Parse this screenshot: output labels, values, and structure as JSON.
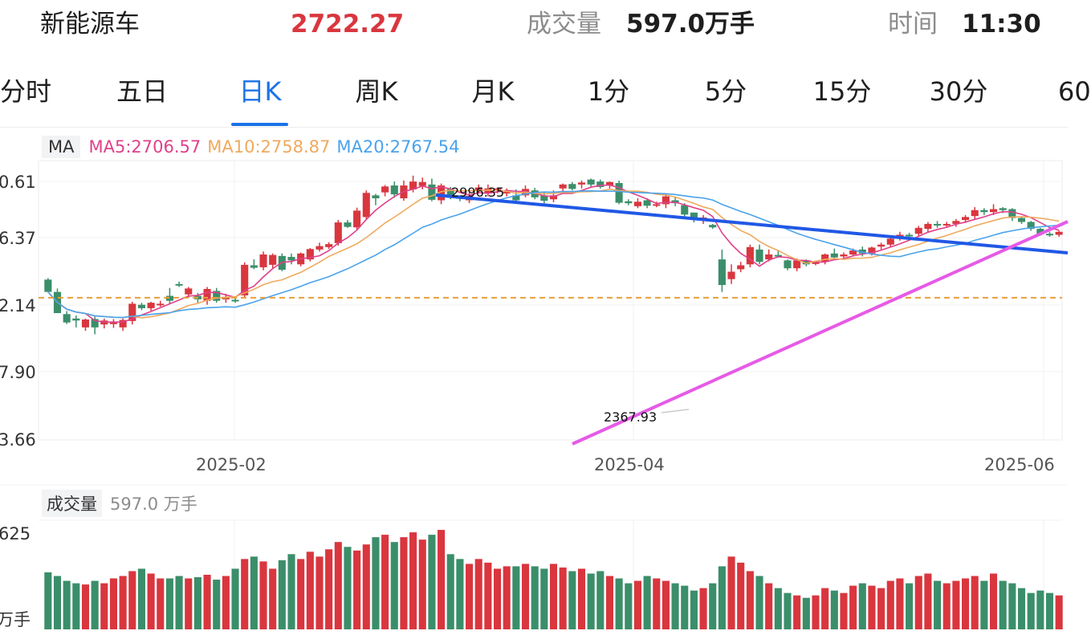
{
  "header": {
    "name": "新能源车",
    "price": "2722.27",
    "volume_label": "成交量",
    "volume_value": "597.0万手",
    "time_label": "时间",
    "time_value": "11:30"
  },
  "tabs": [
    {
      "label": "分时",
      "active": false
    },
    {
      "label": "五日",
      "active": false
    },
    {
      "label": "日K",
      "active": true
    },
    {
      "label": "周K",
      "active": false
    },
    {
      "label": "月K",
      "active": false
    },
    {
      "label": "1分",
      "active": false
    },
    {
      "label": "5分",
      "active": false
    },
    {
      "label": "15分",
      "active": false
    },
    {
      "label": "30分",
      "active": false
    },
    {
      "label": "60",
      "active": false
    }
  ],
  "ma_legend": {
    "tag": "MA",
    "ma5": "MA5:2706.57",
    "ma10": "MA10:2758.87",
    "ma20": "MA20:2767.54"
  },
  "volume_legend": {
    "tag": "成交量",
    "value": "597.0 万手"
  },
  "colors": {
    "up": "#d9363e",
    "down": "#3b8e6a",
    "price": "#d9363e",
    "ma5": "#e0408a",
    "ma10": "#efaa5e",
    "ma20": "#4aa3ec",
    "trendline_blue": "#2058e6",
    "trendline_pink": "#e65ae6",
    "ref_line": "#e8a03a"
  },
  "chart_data": {
    "type": "candlestick",
    "price_axis_labels": [
      "0.61",
      "6.37",
      "2.14",
      "7.90",
      "3.66"
    ],
    "volume_axis_labels": [
      "625",
      "万手"
    ],
    "x_ticks": [
      "2025-02",
      "2025-04",
      "2025-06"
    ],
    "high_annotation": "2996.35",
    "low_annotation": "2367.93",
    "reference_level": 2722.27,
    "ylim": [
      2433.66,
      3000.61
    ],
    "candles": [
      [
        2759,
        2734,
        2738,
        2762,
        47
      ],
      [
        2734,
        2691,
        2694,
        2741,
        44
      ],
      [
        2689,
        2672,
        2669,
        2695,
        40
      ],
      [
        2680,
        2676,
        2662,
        2686,
        38
      ],
      [
        2662,
        2678,
        2655,
        2680,
        37
      ],
      [
        2679,
        2662,
        2648,
        2684,
        40
      ],
      [
        2668,
        2676,
        2660,
        2680,
        38
      ],
      [
        2671,
        2672,
        2661,
        2679,
        42
      ],
      [
        2662,
        2677,
        2655,
        2680,
        44
      ],
      [
        2675,
        2710,
        2668,
        2714,
        48
      ],
      [
        2708,
        2701,
        2697,
        2712,
        50
      ],
      [
        2701,
        2712,
        2696,
        2714,
        46
      ],
      [
        2707,
        2710,
        2704,
        2716,
        42
      ],
      [
        2726,
        2716,
        2710,
        2742,
        42
      ],
      [
        2750,
        2749,
        2744,
        2755,
        44
      ],
      [
        2729,
        2741,
        2722,
        2744,
        42
      ],
      [
        2726,
        2719,
        2712,
        2732,
        43
      ],
      [
        2716,
        2740,
        2708,
        2744,
        45
      ],
      [
        2736,
        2716,
        2712,
        2742,
        41
      ],
      [
        2719,
        2724,
        2712,
        2730,
        44
      ],
      [
        2718,
        2716,
        2712,
        2722,
        50
      ],
      [
        2727,
        2789,
        2722,
        2794,
        58
      ],
      [
        2788,
        2783,
        2780,
        2800,
        60
      ],
      [
        2784,
        2810,
        2778,
        2816,
        56
      ],
      [
        2789,
        2809,
        2782,
        2812,
        50
      ],
      [
        2807,
        2779,
        2776,
        2812,
        57
      ],
      [
        2805,
        2798,
        2790,
        2812,
        62
      ],
      [
        2790,
        2812,
        2786,
        2814,
        58
      ],
      [
        2800,
        2821,
        2796,
        2823,
        64
      ],
      [
        2820,
        2827,
        2816,
        2834,
        60
      ],
      [
        2825,
        2831,
        2821,
        2835,
        66
      ],
      [
        2833,
        2875,
        2828,
        2880,
        72
      ],
      [
        2875,
        2866,
        2864,
        2880,
        68
      ],
      [
        2865,
        2899,
        2860,
        2905,
        65
      ],
      [
        2886,
        2935,
        2880,
        2940,
        70
      ],
      [
        2930,
        2924,
        2910,
        2933,
        76
      ],
      [
        2936,
        2948,
        2928,
        2951,
        78
      ],
      [
        2950,
        2932,
        2925,
        2958,
        72
      ],
      [
        2924,
        2950,
        2919,
        2960,
        76
      ],
      [
        2942,
        2958,
        2936,
        2970,
        80
      ],
      [
        2949,
        2957,
        2942,
        2966,
        74
      ],
      [
        2952,
        2921,
        2918,
        2964,
        78
      ],
      [
        2920,
        2950,
        2912,
        2954,
        82
      ],
      [
        2943,
        2929,
        2922,
        2947,
        62
      ],
      [
        2930,
        2923,
        2918,
        2930,
        58
      ],
      [
        2920,
        2929,
        2914,
        2936,
        54
      ],
      [
        2940,
        2946,
        2934,
        2952,
        58
      ],
      [
        2934,
        2944,
        2928,
        2952,
        55
      ],
      [
        2940,
        2944,
        2934,
        2946,
        50
      ],
      [
        2935,
        2937,
        2928,
        2944,
        52
      ],
      [
        2930,
        2920,
        2914,
        2942,
        52
      ],
      [
        2930,
        2943,
        2926,
        2950,
        54
      ],
      [
        2940,
        2926,
        2922,
        2945,
        52
      ],
      [
        2930,
        2919,
        2912,
        2937,
        50
      ],
      [
        2922,
        2930,
        2916,
        2940,
        54
      ],
      [
        2944,
        2952,
        2938,
        2954,
        51
      ],
      [
        2953,
        2943,
        2940,
        2957,
        48
      ],
      [
        2952,
        2956,
        2944,
        2960,
        50
      ],
      [
        2962,
        2952,
        2946,
        2964,
        46
      ],
      [
        2958,
        2947,
        2944,
        2962,
        48
      ],
      [
        2950,
        2957,
        2944,
        2958,
        44
      ],
      [
        2955,
        2915,
        2912,
        2960,
        42
      ],
      [
        2918,
        2914,
        2910,
        2922,
        38
      ],
      [
        2908,
        2917,
        2904,
        2924,
        40
      ],
      [
        2920,
        2909,
        2904,
        2924,
        44
      ],
      [
        2912,
        2912,
        2906,
        2917,
        42
      ],
      [
        2912,
        2928,
        2904,
        2932,
        40
      ],
      [
        2920,
        2914,
        2908,
        2926,
        38
      ],
      [
        2910,
        2891,
        2886,
        2914,
        36
      ],
      [
        2895,
        2880,
        2875,
        2895,
        32
      ],
      [
        2880,
        2885,
        2872,
        2890,
        34
      ],
      [
        2870,
        2865,
        2862,
        2872,
        38
      ],
      [
        2800,
        2748,
        2734,
        2820,
        52
      ],
      [
        2760,
        2775,
        2750,
        2790,
        60
      ],
      [
        2780,
        2788,
        2774,
        2795,
        55
      ],
      [
        2790,
        2825,
        2784,
        2830,
        48
      ],
      [
        2820,
        2795,
        2790,
        2830,
        44
      ],
      [
        2800,
        2810,
        2796,
        2820,
        38
      ],
      [
        2809,
        2808,
        2804,
        2818,
        34
      ],
      [
        2798,
        2782,
        2778,
        2800,
        30
      ],
      [
        2782,
        2798,
        2776,
        2802,
        28
      ],
      [
        2798,
        2790,
        2786,
        2800,
        26
      ],
      [
        2792,
        2794,
        2788,
        2796,
        28
      ],
      [
        2795,
        2810,
        2790,
        2812,
        34
      ],
      [
        2812,
        2804,
        2800,
        2822,
        32
      ],
      [
        2806,
        2810,
        2800,
        2814,
        30
      ],
      [
        2810,
        2818,
        2806,
        2822,
        36
      ],
      [
        2820,
        2812,
        2806,
        2826,
        38
      ],
      [
        2812,
        2824,
        2808,
        2826,
        36
      ],
      [
        2826,
        2830,
        2820,
        2834,
        34
      ],
      [
        2830,
        2842,
        2824,
        2846,
        40
      ],
      [
        2842,
        2850,
        2838,
        2856,
        42
      ],
      [
        2850,
        2848,
        2842,
        2854,
        38
      ],
      [
        2852,
        2864,
        2846,
        2868,
        44
      ],
      [
        2862,
        2872,
        2856,
        2876,
        46
      ],
      [
        2872,
        2870,
        2864,
        2878,
        40
      ],
      [
        2870,
        2872,
        2864,
        2876,
        38
      ],
      [
        2872,
        2878,
        2866,
        2882,
        40
      ],
      [
        2880,
        2886,
        2874,
        2890,
        42
      ],
      [
        2888,
        2900,
        2880,
        2906,
        44
      ],
      [
        2900,
        2896,
        2890,
        2904,
        40
      ],
      [
        2896,
        2902,
        2890,
        2912,
        46
      ],
      [
        2904,
        2900,
        2894,
        2906,
        40
      ],
      [
        2902,
        2884,
        2878,
        2904,
        38
      ],
      [
        2884,
        2876,
        2872,
        2888,
        34
      ],
      [
        2876,
        2862,
        2858,
        2878,
        30
      ],
      [
        2862,
        2852,
        2848,
        2864,
        32
      ],
      [
        2852,
        2850,
        2846,
        2856,
        30
      ],
      [
        2850,
        2856,
        2846,
        2858,
        28
      ]
    ]
  }
}
